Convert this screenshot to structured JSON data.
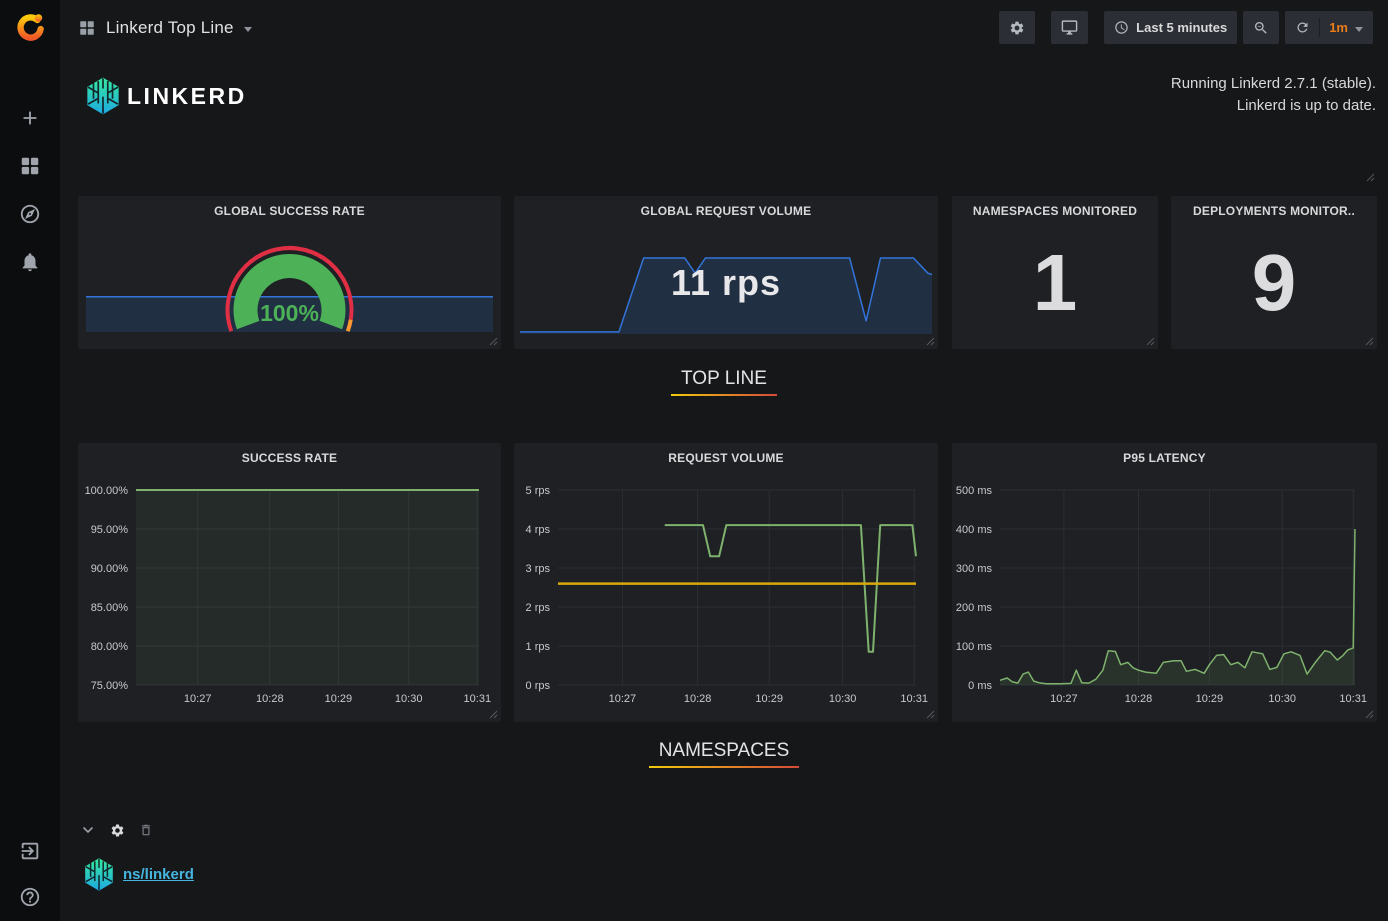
{
  "nav": {
    "title": "Linkerd Top Line",
    "time_range": "Last 5 minutes",
    "refresh_interval": "1m"
  },
  "header": {
    "brand": "LINKERD",
    "status_line1": "Running Linkerd 2.7.1 (stable).",
    "status_line2": "Linkerd is up to date."
  },
  "stats": {
    "namespaces": {
      "title": "NAMESPACES MONITORED",
      "value": "1"
    },
    "deployments": {
      "title": "DEPLOYMENTS MONITOR..",
      "value": "9"
    }
  },
  "sections": {
    "top_line": "TOP LINE",
    "namespaces": "NAMESPACES"
  },
  "namespace_row": {
    "link": "ns/linkerd"
  },
  "colors": {
    "accent_orange": "#eb7b18",
    "series_green": "#7eb26d",
    "series_yellow": "#d9a90b",
    "series_blue": "#3274d9",
    "threshold_red": "#e02f44",
    "threshold_orange": "#ff9830",
    "gauge_green": "#4cb157",
    "link_cyan": "#45b5e0"
  },
  "chart_data": [
    {
      "id": "global-success-gauge",
      "type": "gauge",
      "title": "GLOBAL SUCCESS RATE",
      "value": 100,
      "max": 100,
      "display": "100%",
      "color": "#4cb157",
      "thresholds": [
        {
          "from": 0,
          "to": 0.95,
          "color": "#e02f44"
        },
        {
          "from": 0.95,
          "to": 1,
          "color": "#ff9830"
        }
      ]
    },
    {
      "id": "global-success-sparkline",
      "type": "area",
      "ylim": [
        0,
        210
      ],
      "color": "#3274d9",
      "fill": "rgba(50,116,217,0.18)",
      "points": [
        [
          0,
          100
        ],
        [
          1,
          100
        ]
      ]
    },
    {
      "id": "global-request-sparkline",
      "type": "area",
      "title": "GLOBAL REQUEST VOLUME",
      "display": "11 rps",
      "ylim": [
        0,
        11
      ],
      "color": "#3274d9",
      "fill": "rgba(50,116,217,0.18)",
      "points": [
        [
          0,
          0.3
        ],
        [
          0.24,
          0.3
        ],
        [
          0.3,
          11
        ],
        [
          0.4,
          11
        ],
        [
          0.425,
          8.8
        ],
        [
          0.45,
          11
        ],
        [
          0.8,
          11
        ],
        [
          0.84,
          1.9
        ],
        [
          0.875,
          11
        ],
        [
          0.955,
          11
        ],
        [
          0.99,
          8.8
        ],
        [
          1,
          8.6
        ]
      ]
    },
    {
      "id": "success-rate",
      "type": "line",
      "title": "SUCCESS RATE",
      "ylim": [
        75,
        100
      ],
      "yticks": [
        {
          "label": "100.00%",
          "v": 100
        },
        {
          "label": "95.00%",
          "v": 95
        },
        {
          "label": "90.00%",
          "v": 90
        },
        {
          "label": "85.00%",
          "v": 85
        },
        {
          "label": "80.00%",
          "v": 80
        },
        {
          "label": "75.00%",
          "v": 75
        }
      ],
      "xticks": [
        {
          "label": "10:27",
          "f": 0.18
        },
        {
          "label": "10:28",
          "f": 0.39
        },
        {
          "label": "10:29",
          "f": 0.59
        },
        {
          "label": "10:30",
          "f": 0.795
        },
        {
          "label": "10:31",
          "f": 0.995
        }
      ],
      "series": [
        {
          "name": "success rate",
          "color": "#7eb26d",
          "width": 2,
          "fill": "rgba(126,178,109,0.08)",
          "points": [
            [
              0,
              100
            ],
            [
              1,
              100
            ]
          ]
        }
      ]
    },
    {
      "id": "request-volume",
      "type": "line",
      "title": "REQUEST VOLUME",
      "ylim": [
        0,
        5
      ],
      "yticks": [
        {
          "label": "5 rps",
          "v": 5
        },
        {
          "label": "4 rps",
          "v": 4
        },
        {
          "label": "3 rps",
          "v": 3
        },
        {
          "label": "2 rps",
          "v": 2
        },
        {
          "label": "1 rps",
          "v": 1
        },
        {
          "label": "0 rps",
          "v": 0
        }
      ],
      "xticks": [
        {
          "label": "10:27",
          "f": 0.18
        },
        {
          "label": "10:28",
          "f": 0.39
        },
        {
          "label": "10:29",
          "f": 0.59
        },
        {
          "label": "10:30",
          "f": 0.795
        },
        {
          "label": "10:31",
          "f": 0.995
        }
      ],
      "series": [
        {
          "name": "request volume",
          "color": "#7eb26d",
          "width": 2,
          "points": [
            [
              0.298,
              4.1
            ],
            [
              0.405,
              4.1
            ],
            [
              0.425,
              3.3
            ],
            [
              0.45,
              3.3
            ],
            [
              0.47,
              4.1
            ],
            [
              0.846,
              4.1
            ],
            [
              0.868,
              0.85
            ],
            [
              0.88,
              0.85
            ],
            [
              0.9,
              4.1
            ],
            [
              0.99,
              4.1
            ],
            [
              1,
              3.3
            ]
          ]
        },
        {
          "name": "threshold",
          "color": "#d9a90b",
          "width": 2.5,
          "points": [
            [
              0,
              2.6
            ],
            [
              1,
              2.6
            ]
          ]
        }
      ]
    },
    {
      "id": "p95-latency",
      "type": "line",
      "title": "P95 LATENCY",
      "ylim": [
        0,
        500
      ],
      "yticks": [
        {
          "label": "500 ms",
          "v": 500
        },
        {
          "label": "400 ms",
          "v": 400
        },
        {
          "label": "300 ms",
          "v": 300
        },
        {
          "label": "200 ms",
          "v": 200
        },
        {
          "label": "100 ms",
          "v": 100
        },
        {
          "label": "0 ms",
          "v": 0
        }
      ],
      "xticks": [
        {
          "label": "10:27",
          "f": 0.18
        },
        {
          "label": "10:28",
          "f": 0.39
        },
        {
          "label": "10:29",
          "f": 0.59
        },
        {
          "label": "10:30",
          "f": 0.795
        },
        {
          "label": "10:31",
          "f": 0.995
        }
      ],
      "series": [
        {
          "name": "p95 latency",
          "color": "#7eb26d",
          "width": 1.5,
          "fill": "rgba(126,178,109,0.12)",
          "points": [
            [
              0,
              12
            ],
            [
              0.02,
              18
            ],
            [
              0.035,
              8
            ],
            [
              0.05,
              5
            ],
            [
              0.065,
              28
            ],
            [
              0.08,
              33
            ],
            [
              0.095,
              10
            ],
            [
              0.11,
              6
            ],
            [
              0.13,
              3
            ],
            [
              0.17,
              3
            ],
            [
              0.2,
              4
            ],
            [
              0.215,
              38
            ],
            [
              0.23,
              6
            ],
            [
              0.25,
              5
            ],
            [
              0.27,
              15
            ],
            [
              0.29,
              38
            ],
            [
              0.305,
              88
            ],
            [
              0.325,
              86
            ],
            [
              0.34,
              52
            ],
            [
              0.36,
              58
            ],
            [
              0.375,
              44
            ],
            [
              0.39,
              38
            ],
            [
              0.41,
              33
            ],
            [
              0.44,
              30
            ],
            [
              0.46,
              58
            ],
            [
              0.49,
              62
            ],
            [
              0.51,
              62
            ],
            [
              0.525,
              35
            ],
            [
              0.55,
              40
            ],
            [
              0.575,
              30
            ],
            [
              0.59,
              52
            ],
            [
              0.61,
              76
            ],
            [
              0.63,
              78
            ],
            [
              0.65,
              52
            ],
            [
              0.67,
              58
            ],
            [
              0.69,
              44
            ],
            [
              0.71,
              85
            ],
            [
              0.74,
              80
            ],
            [
              0.76,
              40
            ],
            [
              0.78,
              45
            ],
            [
              0.8,
              80
            ],
            [
              0.82,
              85
            ],
            [
              0.845,
              76
            ],
            [
              0.865,
              28
            ],
            [
              0.89,
              60
            ],
            [
              0.915,
              88
            ],
            [
              0.93,
              84
            ],
            [
              0.95,
              64
            ],
            [
              0.965,
              75
            ],
            [
              0.98,
              90
            ],
            [
              0.995,
              95
            ],
            [
              1,
              400
            ]
          ]
        }
      ]
    }
  ]
}
